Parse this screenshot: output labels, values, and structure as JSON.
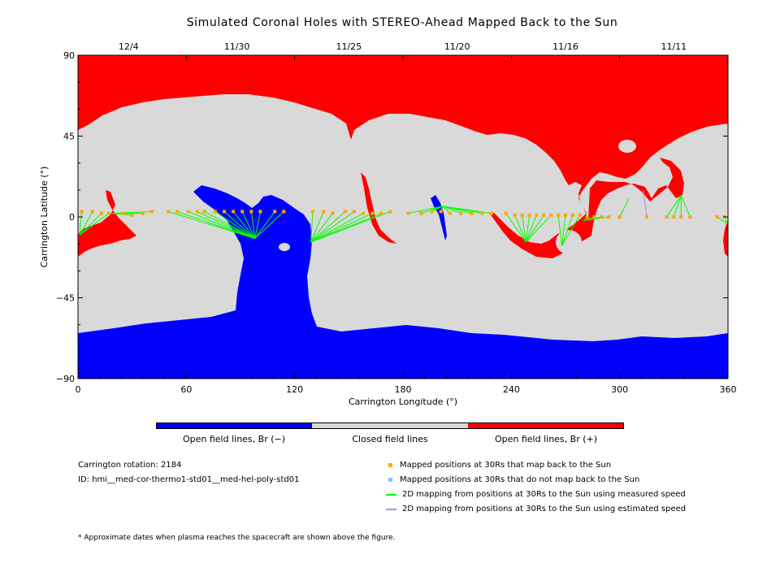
{
  "chart_data": {
    "type": "map",
    "title": "Simulated Coronal Holes with STEREO-Ahead Mapped Back to the Sun",
    "xlabel": "Carrington Longitude (°)",
    "ylabel": "Carrington Latitude (°)",
    "xlim": [
      0,
      360
    ],
    "ylim": [
      -90,
      90
    ],
    "x_ticks": [
      "0",
      "60",
      "120",
      "180",
      "240",
      "300",
      "360"
    ],
    "y_ticks": [
      "90",
      "45",
      "0",
      "−45",
      "−90"
    ],
    "top_dates": [
      {
        "label": "12/4",
        "lon": 28
      },
      {
        "label": "11/30",
        "lon": 88
      },
      {
        "label": "11/25",
        "lon": 150
      },
      {
        "label": "11/20",
        "lon": 210
      },
      {
        "label": "11/16",
        "lon": 270
      },
      {
        "label": "11/11",
        "lon": 330
      }
    ],
    "colors": {
      "open_negative": "#0000ff",
      "closed": "#d9d9d9",
      "open_positive": "#ff0000",
      "mapped_point": "#ffa500",
      "unmapped_point": "#87bfff",
      "measured_line": "#00ff00",
      "estimated_line": "#c080ff"
    },
    "mapped_points_at_30Rs": [
      {
        "lon": 2,
        "lat": 3
      },
      {
        "lon": 8,
        "lat": 3
      },
      {
        "lon": 13,
        "lat": 2
      },
      {
        "lon": 17,
        "lat": 2
      },
      {
        "lon": 25,
        "lat": 2
      },
      {
        "lon": 30,
        "lat": 1
      },
      {
        "lon": 36,
        "lat": 2
      },
      {
        "lon": 41,
        "lat": 3
      },
      {
        "lon": 50,
        "lat": 3
      },
      {
        "lon": 55,
        "lat": 3
      },
      {
        "lon": 61,
        "lat": 3
      },
      {
        "lon": 66,
        "lat": 3
      },
      {
        "lon": 70,
        "lat": 3
      },
      {
        "lon": 76,
        "lat": 3
      },
      {
        "lon": 81,
        "lat": 3
      },
      {
        "lon": 86,
        "lat": 3
      },
      {
        "lon": 91,
        "lat": 3
      },
      {
        "lon": 96,
        "lat": 3
      },
      {
        "lon": 101,
        "lat": 3
      },
      {
        "lon": 109,
        "lat": 3
      },
      {
        "lon": 114,
        "lat": 3
      },
      {
        "lon": 130,
        "lat": 3
      },
      {
        "lon": 136,
        "lat": 3
      },
      {
        "lon": 141,
        "lat": 2
      },
      {
        "lon": 148,
        "lat": 3
      },
      {
        "lon": 153,
        "lat": 3
      },
      {
        "lon": 158,
        "lat": 2
      },
      {
        "lon": 163,
        "lat": 2
      },
      {
        "lon": 168,
        "lat": 2
      },
      {
        "lon": 173,
        "lat": 3
      },
      {
        "lon": 183,
        "lat": 2
      },
      {
        "lon": 190,
        "lat": 2
      },
      {
        "lon": 196,
        "lat": 3
      },
      {
        "lon": 201,
        "lat": 3
      },
      {
        "lon": 206,
        "lat": 2
      },
      {
        "lon": 212,
        "lat": 2
      },
      {
        "lon": 218,
        "lat": 2
      },
      {
        "lon": 224,
        "lat": 2
      },
      {
        "lon": 229,
        "lat": 2
      },
      {
        "lon": 237,
        "lat": 2
      },
      {
        "lon": 242,
        "lat": 1
      },
      {
        "lon": 246,
        "lat": 1
      },
      {
        "lon": 250,
        "lat": 1
      },
      {
        "lon": 254,
        "lat": 1
      },
      {
        "lon": 258,
        "lat": 1
      },
      {
        "lon": 262,
        "lat": 1
      },
      {
        "lon": 266,
        "lat": 1
      },
      {
        "lon": 270,
        "lat": 1
      },
      {
        "lon": 274,
        "lat": 1
      },
      {
        "lon": 278,
        "lat": 1
      },
      {
        "lon": 282,
        "lat": 0
      },
      {
        "lon": 286,
        "lat": 0
      },
      {
        "lon": 290,
        "lat": 0
      },
      {
        "lon": 294,
        "lat": 0
      },
      {
        "lon": 300,
        "lat": 0
      },
      {
        "lon": 315,
        "lat": 0
      },
      {
        "lon": 326,
        "lat": 0
      },
      {
        "lon": 330,
        "lat": 0
      },
      {
        "lon": 334,
        "lat": 0
      },
      {
        "lon": 339,
        "lat": 0
      },
      {
        "lon": 354,
        "lat": 0
      },
      {
        "lon": 358,
        "lat": 0
      }
    ],
    "footpoint_clusters": [
      {
        "lon": 1,
        "lat": -10,
        "members": [
          0,
          1,
          2,
          3
        ]
      },
      {
        "lon": 18,
        "lat": 2,
        "members": [
          4,
          5,
          6,
          7
        ]
      },
      {
        "lon": 98,
        "lat": -12,
        "members": [
          8,
          9,
          10,
          11,
          12,
          13,
          14,
          15,
          16,
          17,
          18,
          19,
          20
        ]
      },
      {
        "lon": 129,
        "lat": -14,
        "members": [
          21,
          22,
          23,
          24,
          25,
          26,
          27,
          28,
          29
        ]
      },
      {
        "lon": 202,
        "lat": 6,
        "members": [
          30,
          31,
          32,
          33,
          34,
          35,
          36,
          37,
          38
        ]
      },
      {
        "lon": 248,
        "lat": -14,
        "members": [
          39,
          40,
          41,
          42,
          43,
          44,
          45
        ]
      },
      {
        "lon": 268,
        "lat": -16,
        "members": [
          46,
          47,
          48,
          49
        ]
      },
      {
        "lon": 280,
        "lat": -2,
        "members": [
          50,
          51,
          52,
          53
        ]
      },
      {
        "lon": 305,
        "lat": 10,
        "members": [
          54
        ]
      },
      {
        "lon": 334,
        "lat": 12,
        "members": [
          56,
          57,
          58,
          59
        ]
      },
      {
        "lon": 360,
        "lat": -4,
        "members": [
          60,
          61
        ]
      }
    ],
    "estimated_lines": [
      {
        "from": {
          "lon": 315,
          "lat": 0
        },
        "to": {
          "lon": 313,
          "lat": 15
        }
      }
    ],
    "legend": {
      "field_lines": [
        "Open field lines, Br (−)",
        "Closed field lines",
        "Open field lines, Br (+)"
      ],
      "markers": [
        "Mapped positions at 30Rs that map back to the Sun",
        "Mapped positions at 30Rs that do not map back to the Sun",
        "2D mapping from positions at 30Rs to the Sun using measured speed",
        "2D mapping from positions at 30Rs to the Sun using estimated speed"
      ],
      "placement": "bottom"
    }
  },
  "info": {
    "rotation": "Carrington rotation: 2184",
    "id": "ID: hmi__med-cor-thermo1-std01__med-hel-poly-std01"
  },
  "footnote": "* Approximate dates when plasma reaches the spacecraft are shown above the figure."
}
